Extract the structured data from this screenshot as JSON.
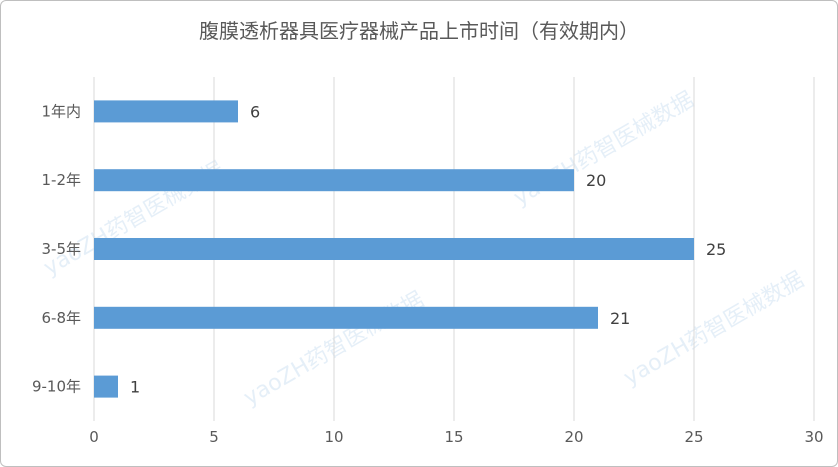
{
  "chart_data": {
    "type": "bar",
    "orientation": "horizontal",
    "title": "腹膜透析器具医疗器械产品上市时间（有效期内）",
    "categories": [
      "1年内",
      "1-2年",
      "3-5年",
      "6-8年",
      "9-10年"
    ],
    "values": [
      6,
      20,
      25,
      21,
      1
    ],
    "xlim": [
      0,
      30
    ],
    "xticks": [
      0,
      5,
      10,
      15,
      20,
      25,
      30
    ],
    "grid": true,
    "bar_color": "#5b9bd5",
    "data_labels": true
  },
  "watermark": "yaoZH药智医械数据"
}
